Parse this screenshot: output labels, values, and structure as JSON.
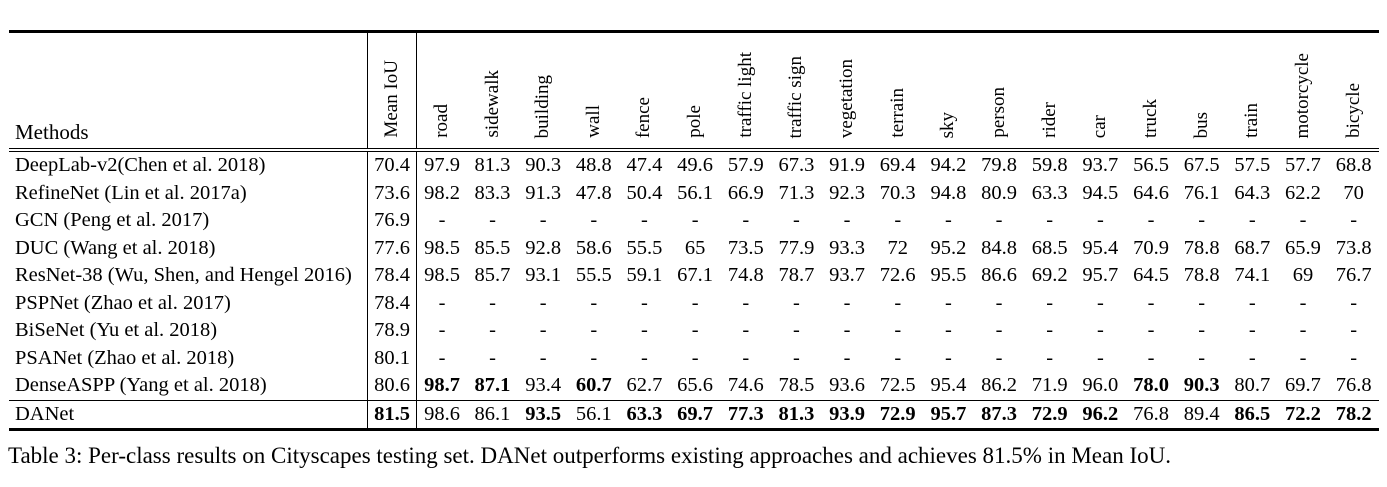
{
  "colors": {
    "text": "#000000",
    "background": "#ffffff"
  },
  "caption": "Table 3: Per-class results on Cityscapes testing set. DANet outperforms existing approaches and achieves 81.5% in Mean IoU.",
  "table": {
    "methods_header": "Methods",
    "columns": [
      "Mean IoU",
      "road",
      "sidewalk",
      "building",
      "wall",
      "fence",
      "pole",
      "traffic light",
      "traffic sign",
      "vegetation",
      "terrain",
      "sky",
      "person",
      "rider",
      "car",
      "truck",
      "bus",
      "train",
      "motorcycle",
      "bicycle"
    ],
    "rows": [
      {
        "method": "DeepLab-v2(Chen et al. 2018)",
        "mean_iou": "70.4",
        "mean_iou_bold": false,
        "values": [
          "97.9",
          "81.3",
          "90.3",
          "48.8",
          "47.4",
          "49.6",
          "57.9",
          "67.3",
          "91.9",
          "69.4",
          "94.2",
          "79.8",
          "59.8",
          "93.7",
          "56.5",
          "67.5",
          "57.5",
          "57.7",
          "68.8"
        ],
        "bold_indices": [],
        "separator_above": false
      },
      {
        "method": "RefineNet (Lin et al. 2017a)",
        "mean_iou": "73.6",
        "mean_iou_bold": false,
        "values": [
          "98.2",
          "83.3",
          "91.3",
          "47.8",
          "50.4",
          "56.1",
          "66.9",
          "71.3",
          "92.3",
          "70.3",
          "94.8",
          "80.9",
          "63.3",
          "94.5",
          "64.6",
          "76.1",
          "64.3",
          "62.2",
          "70"
        ],
        "bold_indices": [],
        "separator_above": false
      },
      {
        "method": "GCN (Peng et al. 2017)",
        "mean_iou": "76.9",
        "mean_iou_bold": false,
        "values": [
          "-",
          "-",
          "-",
          "-",
          "-",
          "-",
          "-",
          "-",
          "-",
          "-",
          "-",
          "-",
          "-",
          "-",
          "-",
          "-",
          "-",
          "-",
          "-"
        ],
        "bold_indices": [],
        "separator_above": false
      },
      {
        "method": "DUC (Wang et al. 2018)",
        "mean_iou": "77.6",
        "mean_iou_bold": false,
        "values": [
          "98.5",
          "85.5",
          "92.8",
          "58.6",
          "55.5",
          "65",
          "73.5",
          "77.9",
          "93.3",
          "72",
          "95.2",
          "84.8",
          "68.5",
          "95.4",
          "70.9",
          "78.8",
          "68.7",
          "65.9",
          "73.8"
        ],
        "bold_indices": [],
        "separator_above": false
      },
      {
        "method": "ResNet-38 (Wu, Shen, and Hengel 2016)",
        "mean_iou": "78.4",
        "mean_iou_bold": false,
        "values": [
          "98.5",
          "85.7",
          "93.1",
          "55.5",
          "59.1",
          "67.1",
          "74.8",
          "78.7",
          "93.7",
          "72.6",
          "95.5",
          "86.6",
          "69.2",
          "95.7",
          "64.5",
          "78.8",
          "74.1",
          "69",
          "76.7"
        ],
        "bold_indices": [],
        "separator_above": false
      },
      {
        "method": "PSPNet (Zhao et al. 2017)",
        "mean_iou": "78.4",
        "mean_iou_bold": false,
        "values": [
          "-",
          "-",
          "-",
          "-",
          "-",
          "-",
          "-",
          "-",
          "-",
          "-",
          "-",
          "-",
          "-",
          "-",
          "-",
          "-",
          "-",
          "-",
          "-"
        ],
        "bold_indices": [],
        "separator_above": false
      },
      {
        "method": "BiSeNet (Yu et al. 2018)",
        "mean_iou": "78.9",
        "mean_iou_bold": false,
        "values": [
          "-",
          "-",
          "-",
          "-",
          "-",
          "-",
          "-",
          "-",
          "-",
          "-",
          "-",
          "-",
          "-",
          "-",
          "-",
          "-",
          "-",
          "-",
          "-"
        ],
        "bold_indices": [],
        "separator_above": false
      },
      {
        "method": "PSANet (Zhao et al. 2018)",
        "mean_iou": "80.1",
        "mean_iou_bold": false,
        "values": [
          "-",
          "-",
          "-",
          "-",
          "-",
          "-",
          "-",
          "-",
          "-",
          "-",
          "-",
          "-",
          "-",
          "-",
          "-",
          "-",
          "-",
          "-",
          "-"
        ],
        "bold_indices": [],
        "separator_above": false
      },
      {
        "method": "DenseASPP (Yang et al. 2018)",
        "mean_iou": "80.6",
        "mean_iou_bold": false,
        "values": [
          "98.7",
          "87.1",
          "93.4",
          "60.7",
          "62.7",
          "65.6",
          "74.6",
          "78.5",
          "93.6",
          "72.5",
          "95.4",
          "86.2",
          "71.9",
          "96.0",
          "78.0",
          "90.3",
          "80.7",
          "69.7",
          "76.8"
        ],
        "bold_indices": [
          0,
          1,
          3,
          14,
          15
        ],
        "separator_above": false
      },
      {
        "method": "DANet",
        "mean_iou": "81.5",
        "mean_iou_bold": true,
        "values": [
          "98.6",
          "86.1",
          "93.5",
          "56.1",
          "63.3",
          "69.7",
          "77.3",
          "81.3",
          "93.9",
          "72.9",
          "95.7",
          "87.3",
          "72.9",
          "96.2",
          "76.8",
          "89.4",
          "86.5",
          "72.2",
          "78.2"
        ],
        "bold_indices": [
          2,
          4,
          5,
          6,
          7,
          8,
          9,
          10,
          11,
          12,
          13,
          16,
          17,
          18
        ],
        "separator_above": true
      }
    ]
  }
}
